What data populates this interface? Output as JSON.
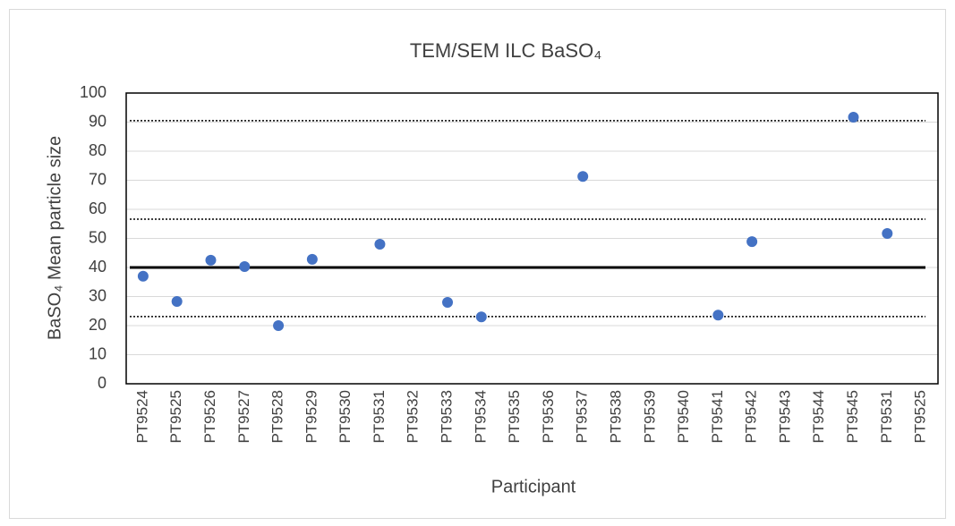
{
  "chart_data": {
    "type": "scatter",
    "title": "TEM/SEM ILC BaSO₄",
    "x_label": "Participant",
    "y_label": "BaSO₄ Mean particle size",
    "categories": [
      "PT9524",
      "PT9525",
      "PT9526",
      "PT9527",
      "PT9528",
      "PT9529",
      "PT9530",
      "PT9531",
      "PT9532",
      "PT9533",
      "PT9534",
      "PT9535",
      "PT9536",
      "PT9537",
      "PT9538",
      "PT9539",
      "PT9540",
      "PT9541",
      "PT9542",
      "PT9543",
      "PT9544",
      "PT9545",
      "PT9531",
      "PT9525"
    ],
    "values": [
      37,
      28.3,
      42.5,
      40.3,
      20,
      42.8,
      null,
      48,
      null,
      28,
      23,
      null,
      null,
      71.3,
      null,
      null,
      null,
      23.6,
      48.9,
      null,
      null,
      91.7,
      51.7,
      null
    ],
    "color": "#4472c4",
    "reference_lines": [
      {
        "value": 40,
        "style": "solid"
      },
      {
        "value": 23.1,
        "style": "dotted"
      },
      {
        "value": 56.6,
        "style": "dotted"
      },
      {
        "value": 90.5,
        "style": "dotted"
      }
    ],
    "ylim": [
      0,
      100
    ],
    "yticks": [
      0,
      10,
      20,
      30,
      40,
      50,
      60,
      70,
      80,
      90,
      100
    ],
    "grid": true
  }
}
